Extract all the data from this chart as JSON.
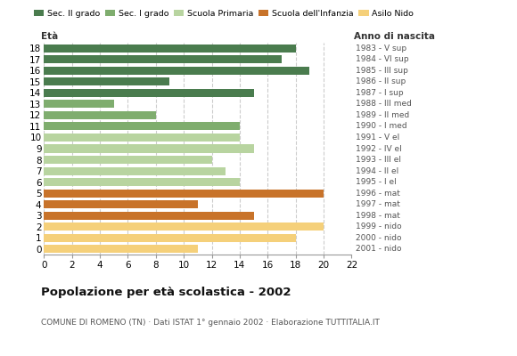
{
  "ages": [
    18,
    17,
    16,
    15,
    14,
    13,
    12,
    11,
    10,
    9,
    8,
    7,
    6,
    5,
    4,
    3,
    2,
    1,
    0
  ],
  "values": [
    18,
    17,
    19,
    9,
    15,
    5,
    8,
    14,
    14,
    15,
    12,
    13,
    14,
    20,
    11,
    15,
    20,
    18,
    11
  ],
  "right_labels": [
    "1983 - V sup",
    "1984 - VI sup",
    "1985 - III sup",
    "1986 - II sup",
    "1987 - I sup",
    "1988 - III med",
    "1989 - II med",
    "1990 - I med",
    "1991 - V el",
    "1992 - IV el",
    "1993 - III el",
    "1994 - II el",
    "1995 - I el",
    "1996 - mat",
    "1997 - mat",
    "1998 - mat",
    "1999 - nido",
    "2000 - nido",
    "2001 - nido"
  ],
  "bar_colors": [
    "#4a7c4e",
    "#4a7c4e",
    "#4a7c4e",
    "#4a7c4e",
    "#4a7c4e",
    "#7fad6e",
    "#7fad6e",
    "#7fad6e",
    "#b8d4a0",
    "#b8d4a0",
    "#b8d4a0",
    "#b8d4a0",
    "#b8d4a0",
    "#c8732a",
    "#c8732a",
    "#c8732a",
    "#f5d07a",
    "#f5d07a",
    "#f5d07a"
  ],
  "legend_labels": [
    "Sec. II grado",
    "Sec. I grado",
    "Scuola Primaria",
    "Scuola dell'Infanzia",
    "Asilo Nido"
  ],
  "legend_colors": [
    "#4a7c4e",
    "#7fad6e",
    "#b8d4a0",
    "#c8732a",
    "#f5d07a"
  ],
  "title": "Popolazione per età scolastica - 2002",
  "subtitle": "COMUNE DI ROMENO (TN) · Dati ISTAT 1° gennaio 2002 · Elaborazione TUTTITALIA.IT",
  "xlabel_eta": "Età",
  "xlabel_anno": "Anno di nascita",
  "xlim": [
    0,
    22
  ],
  "xticks": [
    0,
    2,
    4,
    6,
    8,
    10,
    12,
    14,
    16,
    18,
    20,
    22
  ],
  "background_color": "#ffffff",
  "grid_color": "#cccccc"
}
